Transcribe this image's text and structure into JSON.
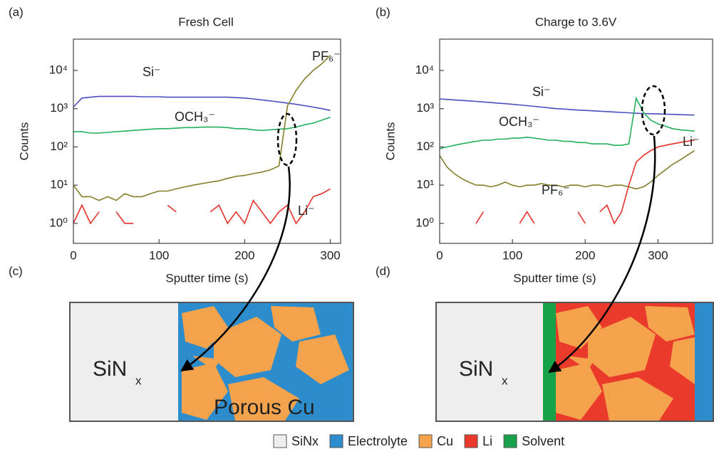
{
  "chart_data": [
    {
      "type": "line",
      "panel_label": "(a)",
      "title": "Fresh Cell",
      "x_label": "Sputter time (s)",
      "y_label": "Counts",
      "log_y": true,
      "xlim": [
        0,
        312
      ],
      "ylim": [
        0.3,
        66000
      ],
      "xticks": [
        0,
        100,
        200,
        300
      ],
      "yticks": [
        {
          "value": 1,
          "label": "10⁰"
        },
        {
          "value": 10,
          "label": "10¹"
        },
        {
          "value": 100,
          "label": "10²"
        },
        {
          "value": 1000,
          "label": "10³"
        },
        {
          "value": 10000,
          "label": "10⁴"
        }
      ],
      "x": [
        0,
        10,
        20,
        30,
        40,
        50,
        60,
        70,
        80,
        90,
        100,
        110,
        120,
        130,
        140,
        150,
        160,
        170,
        180,
        190,
        200,
        210,
        220,
        230,
        240,
        250,
        260,
        270,
        280,
        290,
        300
      ],
      "series": [
        {
          "name": "Si⁻",
          "color": "#4a4ec0",
          "values": [
            1100,
            1900,
            2000,
            2100,
            2100,
            2100,
            2100,
            2100,
            2050,
            2050,
            2050,
            2000,
            2000,
            2000,
            2000,
            2000,
            2000,
            2000,
            2000,
            1950,
            1900,
            1800,
            1700,
            1600,
            1500,
            1400,
            1300,
            1200,
            1100,
            1000,
            900
          ]
        },
        {
          "name": "OCH₃⁻",
          "color": "#22b05a",
          "values": [
            250,
            250,
            230,
            230,
            240,
            250,
            260,
            270,
            280,
            290,
            300,
            300,
            310,
            320,
            320,
            330,
            330,
            330,
            320,
            300,
            300,
            280,
            270,
            280,
            290,
            300,
            330,
            380,
            420,
            500,
            600
          ]
        },
        {
          "name": "PF₆⁻",
          "color": "#857f2a",
          "values": [
            10,
            5,
            5,
            4,
            5,
            4,
            6,
            5,
            5,
            6,
            7,
            7,
            8,
            9,
            10,
            11,
            12,
            13,
            15,
            17,
            18,
            20,
            22,
            25,
            32,
            1200,
            3000,
            6000,
            10000,
            15000,
            25000
          ]
        },
        {
          "name": "Li⁻",
          "color": "#e8302a",
          "values": [
            1,
            3,
            1,
            2,
            null,
            2,
            1,
            1,
            null,
            null,
            null,
            3,
            2,
            null,
            1,
            null,
            2,
            3,
            1,
            2,
            1,
            4,
            2,
            1,
            2,
            3,
            1,
            2,
            5,
            6,
            8
          ]
        }
      ]
    },
    {
      "type": "line",
      "panel_label": "(b)",
      "title": "Charge to 3.6V",
      "x_label": "Sputter time (s)",
      "y_label": "Counts",
      "log_y": true,
      "xlim": [
        0,
        375
      ],
      "ylim": [
        0.3,
        66000
      ],
      "xticks": [
        0,
        100,
        200,
        300
      ],
      "yticks": [
        {
          "value": 1,
          "label": "10⁰"
        },
        {
          "value": 10,
          "label": "10¹"
        },
        {
          "value": 100,
          "label": "10²"
        },
        {
          "value": 1000,
          "label": "10³"
        },
        {
          "value": 10000,
          "label": "10⁴"
        }
      ],
      "x": [
        0,
        10,
        20,
        30,
        40,
        50,
        60,
        70,
        80,
        90,
        100,
        110,
        120,
        130,
        140,
        150,
        160,
        170,
        180,
        190,
        200,
        210,
        220,
        230,
        240,
        250,
        260,
        270,
        280,
        290,
        300,
        310,
        320,
        330,
        340,
        350
      ],
      "series": [
        {
          "name": "Si⁻",
          "color": "#4a4ec0",
          "values": [
            1800,
            1750,
            1700,
            1650,
            1600,
            1550,
            1500,
            1450,
            1400,
            1350,
            1300,
            1250,
            1200,
            1150,
            1100,
            1050,
            1000,
            980,
            950,
            920,
            900,
            880,
            860,
            840,
            820,
            800,
            780,
            760,
            750,
            740,
            730,
            720,
            710,
            700,
            690,
            680
          ]
        },
        {
          "name": "OCH₃⁻",
          "color": "#22b05a",
          "values": [
            90,
            100,
            110,
            120,
            130,
            140,
            150,
            150,
            160,
            160,
            170,
            170,
            180,
            170,
            160,
            150,
            150,
            140,
            140,
            130,
            130,
            120,
            120,
            120,
            110,
            110,
            120,
            1900,
            800,
            500,
            400,
            350,
            300,
            280,
            270,
            260
          ]
        },
        {
          "name": "PF₆⁻",
          "color": "#857f2a",
          "values": [
            60,
            30,
            20,
            15,
            12,
            10,
            10,
            9,
            10,
            12,
            10,
            9,
            10,
            10,
            11,
            10,
            10,
            9,
            10,
            10,
            9,
            10,
            10,
            9,
            10,
            10,
            9,
            8,
            9,
            12,
            18,
            25,
            35,
            45,
            60,
            80
          ]
        },
        {
          "name": "Li⁻",
          "color": "#e8302a",
          "values": [
            1,
            null,
            1,
            null,
            null,
            1,
            2,
            null,
            null,
            null,
            null,
            1,
            2,
            1,
            null,
            1,
            null,
            null,
            null,
            2,
            1,
            null,
            2,
            3,
            1,
            2,
            10,
            40,
            60,
            80,
            100,
            110,
            120,
            130,
            140,
            150
          ]
        }
      ]
    }
  ],
  "diagrams": [
    {
      "panel_label": "(c)",
      "substrate": "SiN",
      "substrate_sub": "x",
      "porous_label": "Porous Cu"
    },
    {
      "panel_label": "(d)",
      "substrate": "SiN",
      "substrate_sub": "x"
    }
  ],
  "legend": [
    {
      "label": "SiNx",
      "color": "#eeeeee"
    },
    {
      "label": "Electrolyte",
      "color": "#2d8ccc"
    },
    {
      "label": "Cu",
      "color": "#f5a24c"
    },
    {
      "label": "Li",
      "color": "#ea3a2c"
    },
    {
      "label": "Solvent",
      "color": "#17a24a"
    }
  ]
}
